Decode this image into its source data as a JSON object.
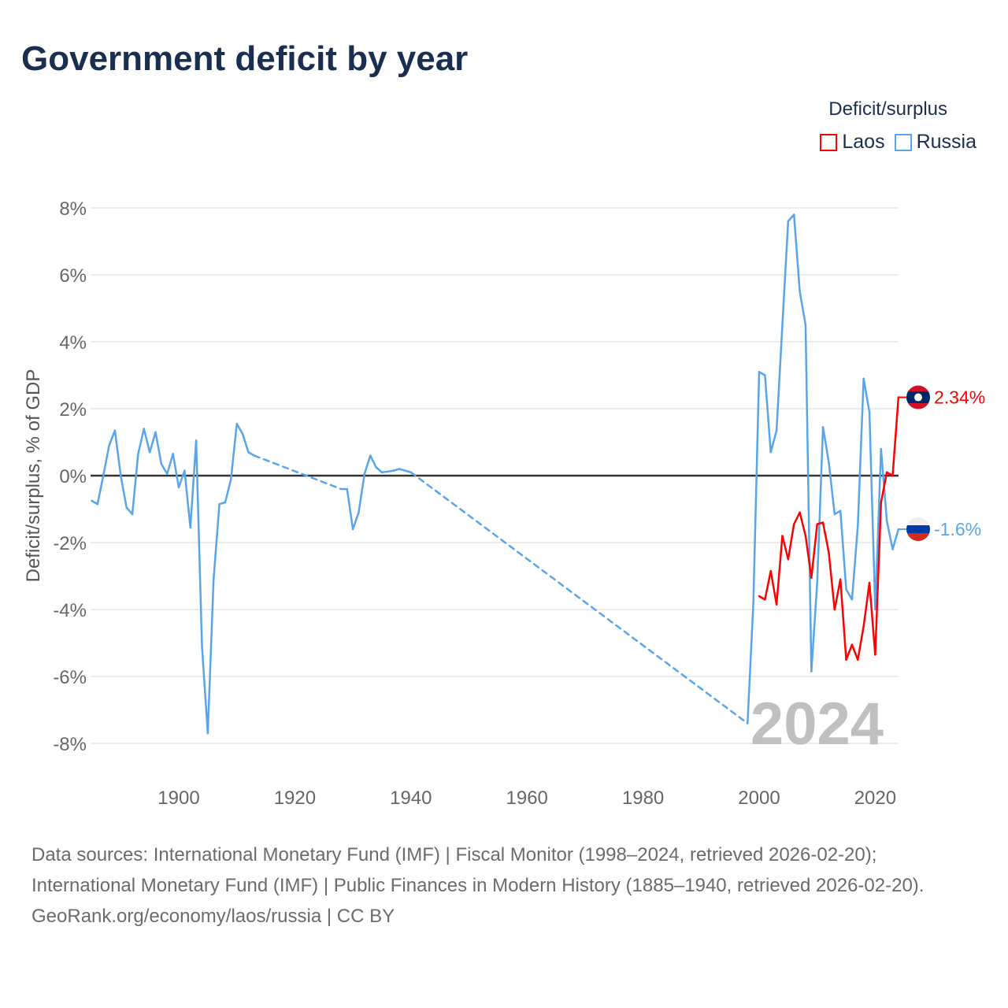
{
  "title": "Government deficit by year",
  "legend": {
    "title": "Deficit/surplus",
    "items": [
      {
        "name": "Laos",
        "color": "#ff0000"
      },
      {
        "name": "Russia",
        "color": "#5aa5ea"
      }
    ]
  },
  "year_watermark": "2024",
  "end_labels": {
    "laos": "2.34%",
    "russia": "-1.6%"
  },
  "footer": {
    "sources": "Data sources: International Monetary Fund (IMF) | Fiscal Monitor (1998–2024, retrieved 2026-02-20); International Monetary Fund (IMF) | Public Finances in Modern History (1885–1940, retrieved 2026-02-20).",
    "credit": "GeoRank.org/economy/laos/russia | CC BY"
  },
  "chart_data": {
    "type": "line",
    "title": "Government deficit by year",
    "xlabel": "",
    "ylabel": "Deficit/surplus, % of GDP",
    "xlim": [
      1885,
      2024
    ],
    "ylim": [
      -8,
      8
    ],
    "x_ticks": [
      1900,
      1920,
      1940,
      1960,
      1980,
      2000,
      2020
    ],
    "y_ticks": [
      {
        "v": 8,
        "label": "8%"
      },
      {
        "v": 6,
        "label": "6%"
      },
      {
        "v": 4,
        "label": "4%"
      },
      {
        "v": 2,
        "label": "2%"
      },
      {
        "v": 0,
        "label": "0%"
      },
      {
        "v": -2,
        "label": "-2%"
      },
      {
        "v": -4,
        "label": "-4%"
      },
      {
        "v": -6,
        "label": "-6%"
      },
      {
        "v": -8,
        "label": "-8%"
      }
    ],
    "grid": true,
    "legend_position": "top-right",
    "series": [
      {
        "name": "Russia",
        "color": "#5aa5ea",
        "x": [
          1885,
          1886,
          1887,
          1888,
          1889,
          1890,
          1891,
          1892,
          1893,
          1894,
          1895,
          1896,
          1897,
          1898,
          1899,
          1900,
          1901,
          1902,
          1903,
          1904,
          1905,
          1906,
          1907,
          1908,
          1909,
          1910,
          1911,
          1912,
          1913,
          1928,
          1929,
          1930,
          1931,
          1932,
          1933,
          1934,
          1935,
          1936,
          1937,
          1938,
          1939,
          1940,
          1998,
          1999,
          2000,
          2001,
          2002,
          2003,
          2004,
          2005,
          2006,
          2007,
          2008,
          2009,
          2010,
          2011,
          2012,
          2013,
          2014,
          2015,
          2016,
          2017,
          2018,
          2019,
          2020,
          2021,
          2022,
          2023,
          2024
        ],
        "values": [
          -0.75,
          -0.85,
          0.0,
          0.9,
          1.35,
          0.0,
          -0.95,
          -1.15,
          0.65,
          1.4,
          0.7,
          1.3,
          0.35,
          0.05,
          0.65,
          -0.35,
          0.15,
          -1.55,
          1.05,
          -5.1,
          -7.7,
          -3.1,
          -0.85,
          -0.8,
          -0.1,
          1.55,
          1.25,
          0.7,
          0.6,
          -0.4,
          -0.4,
          -1.6,
          -1.1,
          0.05,
          0.6,
          0.25,
          0.1,
          0.12,
          0.15,
          0.2,
          0.15,
          0.1,
          -7.4,
          -3.8,
          3.1,
          3.0,
          0.7,
          1.35,
          4.5,
          7.6,
          7.8,
          5.5,
          4.5,
          -5.85,
          -3.2,
          1.45,
          0.4,
          -1.15,
          -1.05,
          -3.4,
          -3.7,
          -1.5,
          2.9,
          1.9,
          -4.0,
          0.8,
          -1.35,
          -2.2,
          -1.6
        ]
      },
      {
        "name": "Laos",
        "color": "#ff0000",
        "x": [
          2000,
          2001,
          2002,
          2003,
          2004,
          2005,
          2006,
          2007,
          2008,
          2009,
          2010,
          2011,
          2012,
          2013,
          2014,
          2015,
          2016,
          2017,
          2018,
          2019,
          2020,
          2021,
          2022,
          2023,
          2024
        ],
        "values": [
          -3.6,
          -3.7,
          -2.85,
          -3.85,
          -1.8,
          -2.5,
          -1.45,
          -1.1,
          -1.8,
          -3.05,
          -1.45,
          -1.4,
          -2.3,
          -4.0,
          -3.1,
          -5.5,
          -5.05,
          -5.5,
          -4.5,
          -3.2,
          -5.35,
          -0.8,
          0.1,
          0.0,
          2.34
        ]
      }
    ]
  }
}
